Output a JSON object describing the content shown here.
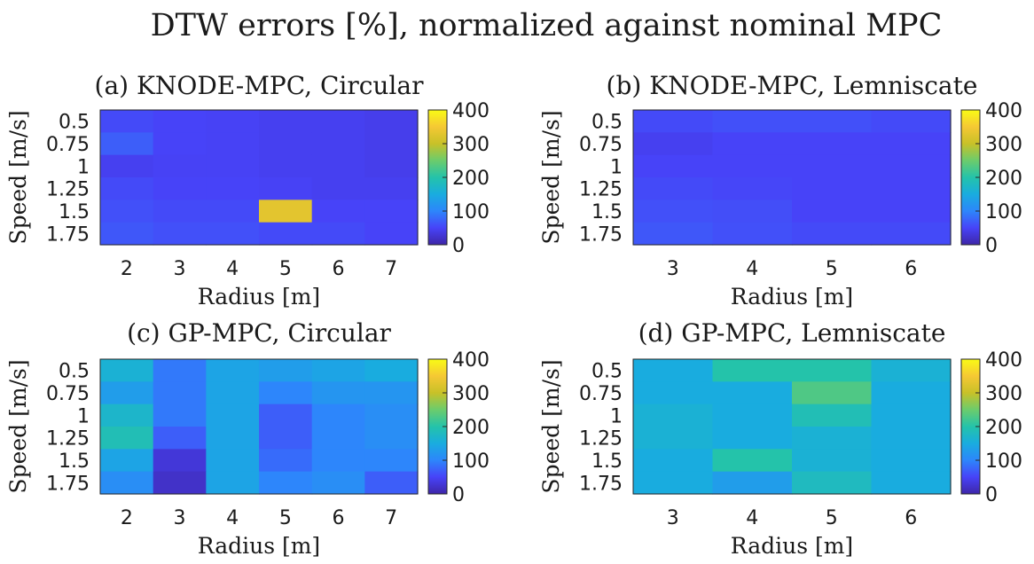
{
  "title": "DTW errors [%], normalized against nominal MPC",
  "colormap": [
    "#3e26a8",
    "#4743f8",
    "#2d86fb",
    "#19acdf",
    "#24c3aa",
    "#6ccc6c",
    "#c8c128",
    "#f5c834",
    "#f9fb15"
  ],
  "chart_data": [
    {
      "type": "heatmap",
      "title": "(a) KNODE-MPC, Circular",
      "xlabel": "Radius [m]",
      "ylabel": "Speed [m/s]",
      "x": [
        "2",
        "3",
        "4",
        "5",
        "6",
        "7"
      ],
      "y": [
        "0.5",
        "0.75",
        "1",
        "1.25",
        "1.5",
        "1.75"
      ],
      "clim": [
        0,
        400
      ],
      "colorbar_ticks": [
        "0",
        "100",
        "200",
        "300",
        "400"
      ],
      "values": [
        [
          55,
          50,
          48,
          45,
          45,
          42
        ],
        [
          70,
          50,
          48,
          45,
          45,
          42
        ],
        [
          45,
          48,
          48,
          45,
          45,
          42
        ],
        [
          55,
          50,
          50,
          48,
          45,
          45
        ],
        [
          60,
          55,
          55,
          330,
          50,
          50
        ],
        [
          65,
          60,
          60,
          55,
          55,
          50
        ]
      ]
    },
    {
      "type": "heatmap",
      "title": "(b) KNODE-MPC, Lemniscate",
      "xlabel": "Radius [m]",
      "ylabel": "Speed [m/s]",
      "x": [
        "3",
        "4",
        "5",
        "6"
      ],
      "y": [
        "0.5",
        "0.75",
        "1",
        "1.25",
        "1.5",
        "1.75"
      ],
      "clim": [
        0,
        400
      ],
      "colorbar_ticks": [
        "0",
        "100",
        "200",
        "300",
        "400"
      ],
      "values": [
        [
          55,
          60,
          60,
          55
        ],
        [
          45,
          50,
          50,
          50
        ],
        [
          50,
          50,
          50,
          50
        ],
        [
          55,
          52,
          50,
          50
        ],
        [
          60,
          58,
          50,
          50
        ],
        [
          65,
          60,
          55,
          55
        ]
      ]
    },
    {
      "type": "heatmap",
      "title": "(c) GP-MPC, Circular",
      "xlabel": "Radius [m]",
      "ylabel": "Speed [m/s]",
      "x": [
        "2",
        "3",
        "4",
        "5",
        "6",
        "7"
      ],
      "y": [
        "0.5",
        "0.75",
        "1",
        "1.25",
        "1.5",
        "1.75"
      ],
      "clim": [
        0,
        400
      ],
      "colorbar_ticks": [
        "0",
        "100",
        "200",
        "300",
        "400"
      ],
      "values": [
        [
          160,
          90,
          140,
          130,
          140,
          150
        ],
        [
          130,
          90,
          140,
          100,
          120,
          120
        ],
        [
          170,
          90,
          140,
          70,
          100,
          110
        ],
        [
          190,
          70,
          140,
          70,
          100,
          110
        ],
        [
          140,
          30,
          140,
          80,
          100,
          100
        ],
        [
          110,
          20,
          140,
          100,
          110,
          70
        ]
      ]
    },
    {
      "type": "heatmap",
      "title": "(d) GP-MPC, Lemniscate",
      "xlabel": "Radius [m]",
      "ylabel": "Speed [m/s]",
      "x": [
        "3",
        "4",
        "5",
        "6"
      ],
      "y": [
        "0.5",
        "0.75",
        "1",
        "1.25",
        "1.5",
        "1.75"
      ],
      "clim": [
        0,
        400
      ],
      "colorbar_ticks": [
        "0",
        "100",
        "200",
        "300",
        "400"
      ],
      "values": [
        [
          150,
          200,
          200,
          160
        ],
        [
          150,
          150,
          230,
          150
        ],
        [
          160,
          150,
          190,
          150
        ],
        [
          160,
          150,
          160,
          150
        ],
        [
          150,
          200,
          160,
          150
        ],
        [
          150,
          130,
          180,
          150
        ]
      ]
    }
  ]
}
